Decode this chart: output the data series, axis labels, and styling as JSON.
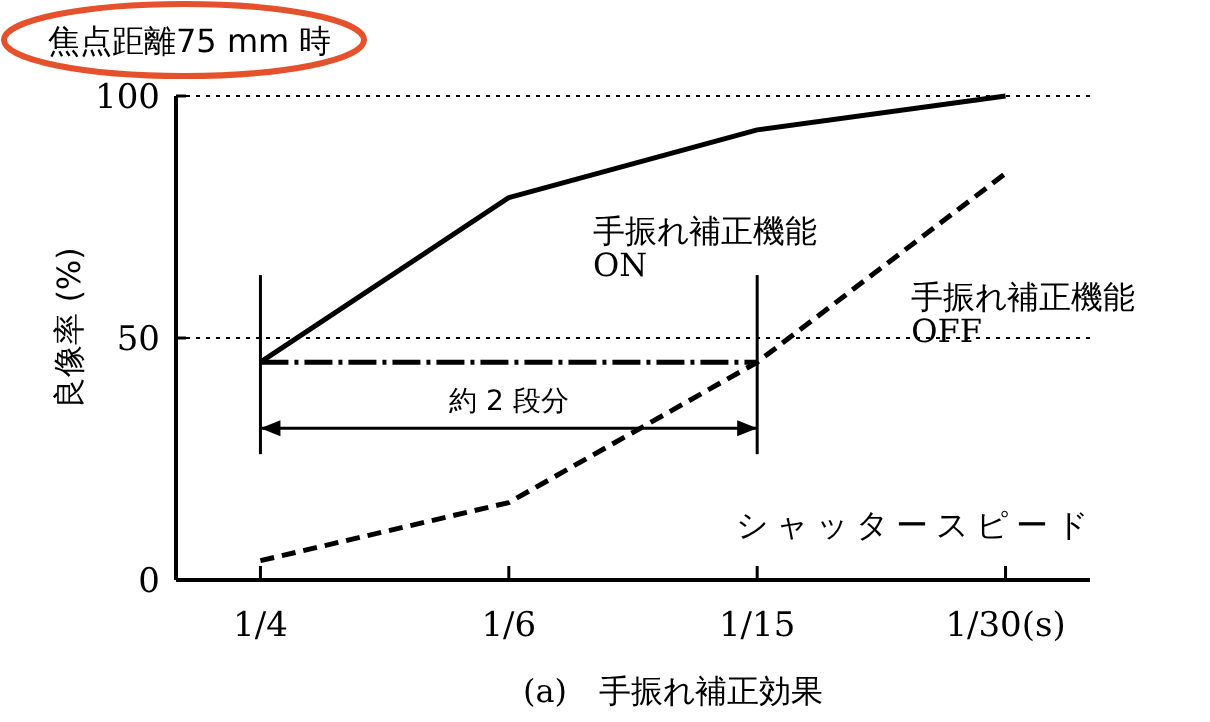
{
  "chart_data": {
    "type": "line",
    "title": "焦点距離75 mm 時",
    "xlabel": "シャッタースピード",
    "ylabel": "良像率 (%)",
    "categories": [
      "1/4",
      "1/6",
      "1/15",
      "1/30(s)"
    ],
    "series": [
      {
        "name": "手振れ補正機能 ON",
        "color": "#000000",
        "values": [
          45,
          79,
          93,
          100
        ],
        "line_style": "solid"
      },
      {
        "name": "手振れ補正機能 OFF",
        "color": "#000000",
        "values": [
          4,
          16,
          45,
          84
        ],
        "line_style": "dashed"
      },
      {
        "color": "#000000",
        "x": [
          "1/4",
          "1/15"
        ],
        "values": [
          45,
          45
        ],
        "line_style": "dashdot"
      }
    ],
    "ylim": [
      0,
      100
    ],
    "yticks": [
      0,
      50,
      100
    ],
    "ref_lines": [
      {
        "axis": "y",
        "value": 100,
        "line_style": "dotted"
      },
      {
        "axis": "y",
        "value": 50,
        "line_style": "dotted"
      }
    ],
    "annotations": [
      "約 2 段分",
      "(a)　手振れ補正効果"
    ],
    "grid": false
  }
}
